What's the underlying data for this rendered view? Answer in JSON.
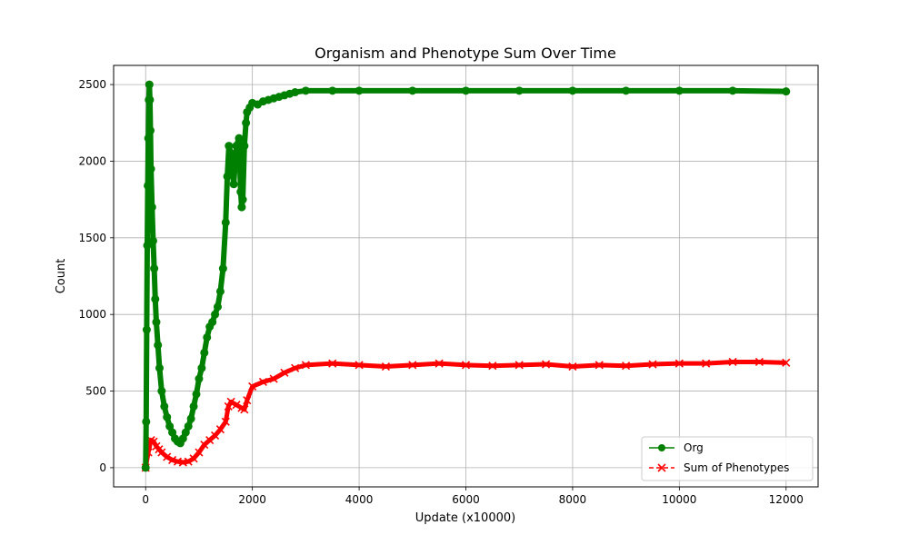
{
  "chart_data": {
    "type": "line",
    "title": "Organism and Phenotype Sum Over Time",
    "xlabel": "Update (x10000)",
    "ylabel": "Count",
    "xlim": [
      -600,
      12600
    ],
    "ylim": [
      -125,
      2625
    ],
    "xticks": [
      0,
      2000,
      4000,
      6000,
      8000,
      10000,
      12000
    ],
    "yticks": [
      0,
      500,
      1000,
      1500,
      2000,
      2500
    ],
    "grid": true,
    "legend_position": "lower right",
    "series": [
      {
        "name": "Org",
        "color": "#008000",
        "marker": "circle",
        "linestyle": "solid",
        "x": [
          0,
          10,
          20,
          30,
          40,
          50,
          60,
          70,
          80,
          90,
          100,
          120,
          140,
          160,
          180,
          200,
          230,
          260,
          300,
          350,
          400,
          450,
          500,
          550,
          600,
          650,
          700,
          750,
          800,
          850,
          900,
          950,
          1000,
          1050,
          1100,
          1150,
          1200,
          1250,
          1300,
          1350,
          1400,
          1450,
          1500,
          1530,
          1560,
          1600,
          1650,
          1700,
          1750,
          1780,
          1800,
          1820,
          1850,
          1880,
          1900,
          1950,
          2000,
          2100,
          2200,
          2300,
          2400,
          2500,
          2600,
          2700,
          2800,
          3000,
          3500,
          4000,
          5000,
          6000,
          7000,
          8000,
          9000,
          10000,
          11000,
          12000
        ],
        "y": [
          0,
          300,
          900,
          1450,
          1840,
          2150,
          2400,
          2500,
          2400,
          2200,
          1950,
          1700,
          1480,
          1300,
          1100,
          950,
          800,
          650,
          500,
          400,
          330,
          270,
          230,
          190,
          170,
          160,
          190,
          230,
          270,
          320,
          400,
          480,
          580,
          650,
          750,
          850,
          920,
          950,
          1000,
          1050,
          1150,
          1300,
          1600,
          1900,
          2100,
          2050,
          1850,
          2100,
          2150,
          1800,
          1700,
          1750,
          2100,
          2250,
          2320,
          2350,
          2380,
          2370,
          2390,
          2400,
          2410,
          2420,
          2430,
          2440,
          2450,
          2460,
          2460,
          2460,
          2460,
          2460,
          2460,
          2460,
          2460,
          2460,
          2460,
          2455
        ]
      },
      {
        "name": "Sum of Phenotypes",
        "color": "#ff0000",
        "marker": "x",
        "linestyle": "dashed",
        "x": [
          0,
          50,
          100,
          150,
          200,
          250,
          300,
          400,
          500,
          600,
          700,
          800,
          900,
          1000,
          1100,
          1200,
          1300,
          1400,
          1500,
          1550,
          1600,
          1700,
          1800,
          1850,
          1900,
          2000,
          2200,
          2400,
          2600,
          2800,
          3000,
          3500,
          4000,
          4500,
          5000,
          5500,
          6000,
          6500,
          7000,
          7500,
          8000,
          8500,
          9000,
          9500,
          10000,
          10500,
          11000,
          11500,
          12000
        ],
        "y": [
          0,
          100,
          180,
          170,
          140,
          120,
          100,
          70,
          50,
          40,
          35,
          40,
          60,
          100,
          150,
          180,
          210,
          250,
          300,
          400,
          430,
          410,
          390,
          380,
          440,
          530,
          560,
          580,
          620,
          650,
          670,
          680,
          670,
          660,
          670,
          680,
          670,
          665,
          670,
          675,
          660,
          670,
          665,
          675,
          680,
          680,
          690,
          690,
          685
        ]
      }
    ]
  }
}
